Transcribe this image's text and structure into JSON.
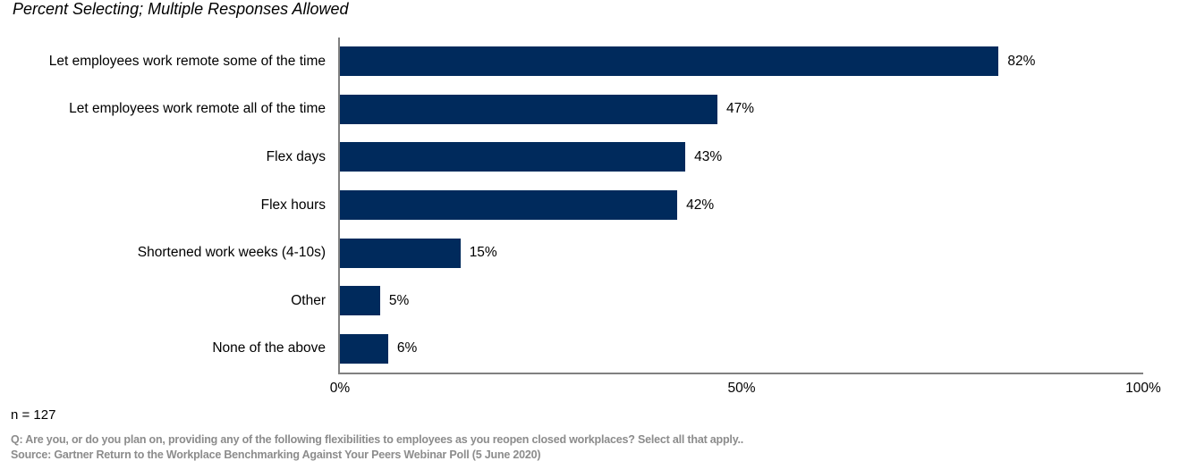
{
  "title": "Percent Selecting; Multiple Responses Allowed",
  "chart_data": {
    "type": "bar",
    "orientation": "horizontal",
    "title": "Percent Selecting; Multiple Responses Allowed",
    "categories": [
      "Let employees work remote some of the time",
      "Let employees work remote all of the time",
      "Flex days",
      "Flex hours",
      "Shortened work weeks (4-10s)",
      "Other",
      "None of the above"
    ],
    "values": [
      82,
      47,
      43,
      42,
      15,
      5,
      6
    ],
    "value_labels": [
      "82%",
      "47%",
      "43%",
      "42%",
      "15%",
      "5%",
      "6%"
    ],
    "xlabel": "",
    "ylabel": "",
    "xlim": [
      0,
      100
    ],
    "x_ticks": [
      {
        "value": 0,
        "label": "0%"
      },
      {
        "value": 50,
        "label": "50%"
      },
      {
        "value": 100,
        "label": "100%"
      }
    ],
    "grid": false,
    "legend": false,
    "bar_color": "#002A5C",
    "axis_color": "#808080"
  },
  "footer": {
    "sample_size": "n = 127",
    "question": "Q: Are you, or do you plan on, providing any of the following flexibilities to employees as you reopen closed workplaces? Select all that apply..",
    "source": "Source: Gartner Return to the Workplace Benchmarking Against Your Peers Webinar Poll (5 June 2020)"
  }
}
